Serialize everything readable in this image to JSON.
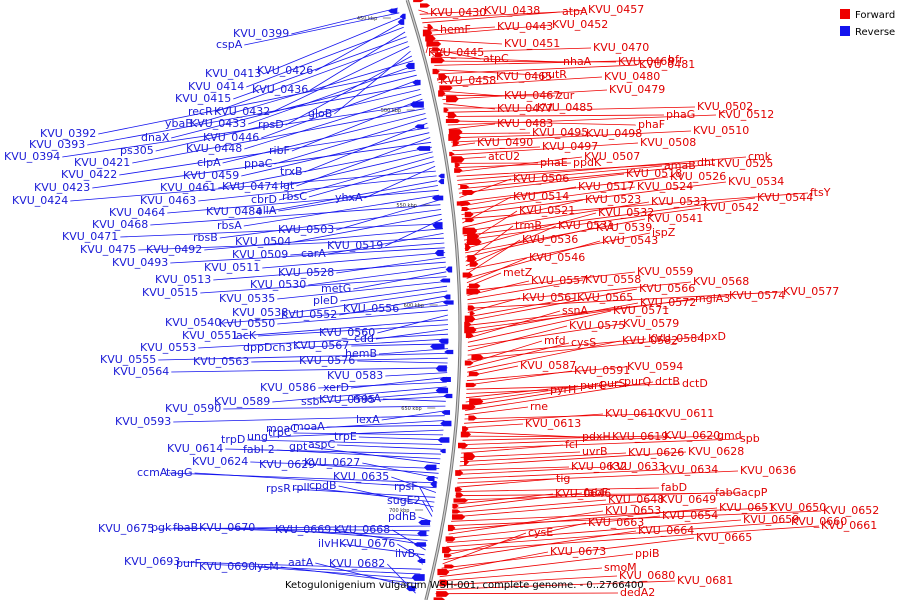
{
  "caption": "Ketogulonigenium vulgarum WSH-001, complete genome. - 0..2766400",
  "legend": [
    {
      "label": "Forward",
      "color": "#ee0000"
    },
    {
      "label": "Reverse",
      "color": "#1414ee"
    }
  ],
  "ticks": [
    "450 kbp",
    "500 kbp",
    "550 kbp",
    "600 kbp",
    "650 kbp",
    "700 kbp"
  ],
  "colors": {
    "forward": "#ee0000",
    "reverse": "#1414ee",
    "forward_text": "#e00000",
    "reverse_text": "#1a1ad6",
    "backbone": "#888888"
  },
  "forward_labels": [
    "KVU_0430",
    "KVU_0438",
    "atpA",
    "KVU_0457",
    "hemF",
    "KVU_0443",
    "KVU_0452",
    "KVU_0451",
    "KVU_0445",
    "atpC",
    "KVU_0470",
    "nhaA",
    "KVU_0469",
    "bfr",
    "putR",
    "KVU_0481",
    "KVU_0458",
    "KVU_0465",
    "KVU_0480",
    "KVU_0467",
    "zur",
    "KVU_0479",
    "KVU_0477",
    "KVU_0485",
    "KVU_0502",
    "phaG",
    "phaF",
    "KVU_0512",
    "KVU_0483",
    "KVU_0495",
    "KVU_0498",
    "KVU_0510",
    "KVU_0490",
    "KVU_0497",
    "KVU_0508",
    "atcU2",
    "phaE",
    "ppdK",
    "KVU_0507",
    "dht",
    "cmk",
    "amaB",
    "KVU_0525",
    "KVU_0518",
    "KVU_0506",
    "KVU_0526",
    "KVU_0517",
    "KVU_0524",
    "KVU_0534",
    "ftsY",
    "KVU_0514",
    "KVU_0523",
    "KVU_0533",
    "KVU_0544",
    "KVU_0542",
    "KVU_0521",
    "KVU_0532",
    "KVU_0541",
    "KVU_0539",
    "trmB",
    "KVU_0531",
    "ispZ",
    "KVU_0536",
    "KVU_0543",
    "KVU_0546",
    "metZ",
    "KVU_0559",
    "KVU_0557",
    "KVU_0558",
    "KVU_0568",
    "KVU_0577",
    "KVU_0561",
    "KVU_0565",
    "KVU_0566",
    "KVU_0574",
    "mglA3",
    "KVU_0572",
    "ssnA",
    "KVU_0571",
    "KVU_0579",
    "KVU_0575",
    "KVU_0584",
    "lpxD",
    "mfd",
    "cysS",
    "KVU_0582",
    "KVU_0587",
    "KVU_0594",
    "KVU_0591",
    "dctD",
    "pyrH",
    "purC",
    "purS",
    "purQ",
    "dctB",
    "rne",
    "KVU_0611",
    "KVU_0610",
    "KVU_0613",
    "pdxH",
    "KVU_0619",
    "KVU_0620",
    "gmd",
    "spb",
    "fcl",
    "uvrB",
    "KVU_0626",
    "KVU_0628",
    "KVU_0632",
    "KVU_0633",
    "KVU_0634",
    "KVU_0636",
    "tig",
    "fabD",
    "acpP",
    "fabG",
    "KVU_0646",
    "fabF",
    "KVU_0648",
    "KVU_0649",
    "KVU_0650",
    "KVU_0652",
    "KVU_0651",
    "KVU_0653",
    "KVU_0654",
    "KVU_0659",
    "KVU_0660",
    "KVU_0661",
    "KVU_0663",
    "KVU_0664",
    "cysE",
    "KVU_0665",
    "KVU_0673",
    "ppiB",
    "smoM",
    "KVU_0680",
    "KVU_0681",
    "dedA2"
  ],
  "reverse_labels": [
    "KVU_0399",
    "cspA",
    "KVU_0413",
    "KVU_0426",
    "KVU_0414",
    "KVU_0436",
    "KVU_0415",
    "recR",
    "KVU_0432",
    "gloB",
    "rpsD",
    "ybaB",
    "KVU_0433",
    "KVU_0392",
    "dnaX",
    "KVU_0446",
    "KVU_0393",
    "ps305",
    "KVU_0448",
    "ribF",
    "KVU_0394",
    "KVU_0421",
    "clpA",
    "ppaC",
    "trxB",
    "KVU_0422",
    "KVU_0459",
    "lgt",
    "KVU_0423",
    "KVU_0461",
    "KVU_0474",
    "cbrD",
    "rbsC",
    "yhxA",
    "KVU_0424",
    "KVU_0463",
    "KVU_0484",
    "allA",
    "KVU_0464",
    "rbsA",
    "KVU_0503",
    "KVU_0468",
    "rbsB",
    "KVU_0504",
    "KVU_0519",
    "KVU_0471",
    "KVU_0492",
    "carA",
    "KVU_0475",
    "KVU_0509",
    "KVU_0493",
    "KVU_0511",
    "KVU_0528",
    "KVU_0513",
    "KVU_0530",
    "metG",
    "KVU_0515",
    "KVU_0535",
    "pleD",
    "KVU_0538",
    "KVU_0552",
    "KVU_0556",
    "KVU_0540",
    "KVU_0550",
    "KVU_0560",
    "KVU_0551",
    "lacK",
    "cdd",
    "KVU_0553",
    "dppDch3",
    "KVU_0567",
    "hemB",
    "KVU_0555",
    "KVU_0563",
    "KVU_0576",
    "KVU_0564",
    "KVU_0583",
    "xerD",
    "KVU_0586",
    "KVU_0589",
    "ssb",
    "KVU_0595",
    "miaA",
    "KVU_0590",
    "lexA",
    "KVU_0593",
    "moaC",
    "moaA",
    "ung",
    "trpC",
    "trpE",
    "trpD",
    "aspC",
    "KVU_0614",
    "fabI-2",
    "gpt",
    "KVU_0624",
    "KVU_0629",
    "KVU_0627",
    "ccmA",
    "tagG",
    "KVU_0635",
    "rpsR",
    "rplI",
    "cpdB",
    "rpsF",
    "sugE2",
    "pdhB",
    "KVU_0675",
    "pgk",
    "fbaB",
    "KVU_0670",
    "KVU_0669",
    "KVU_0668",
    "ilvH",
    "KVU_0676",
    "ilvB",
    "KVU_0693",
    "purF",
    "KVU_0690",
    "lysM",
    "aatA",
    "KVU_0682"
  ]
}
